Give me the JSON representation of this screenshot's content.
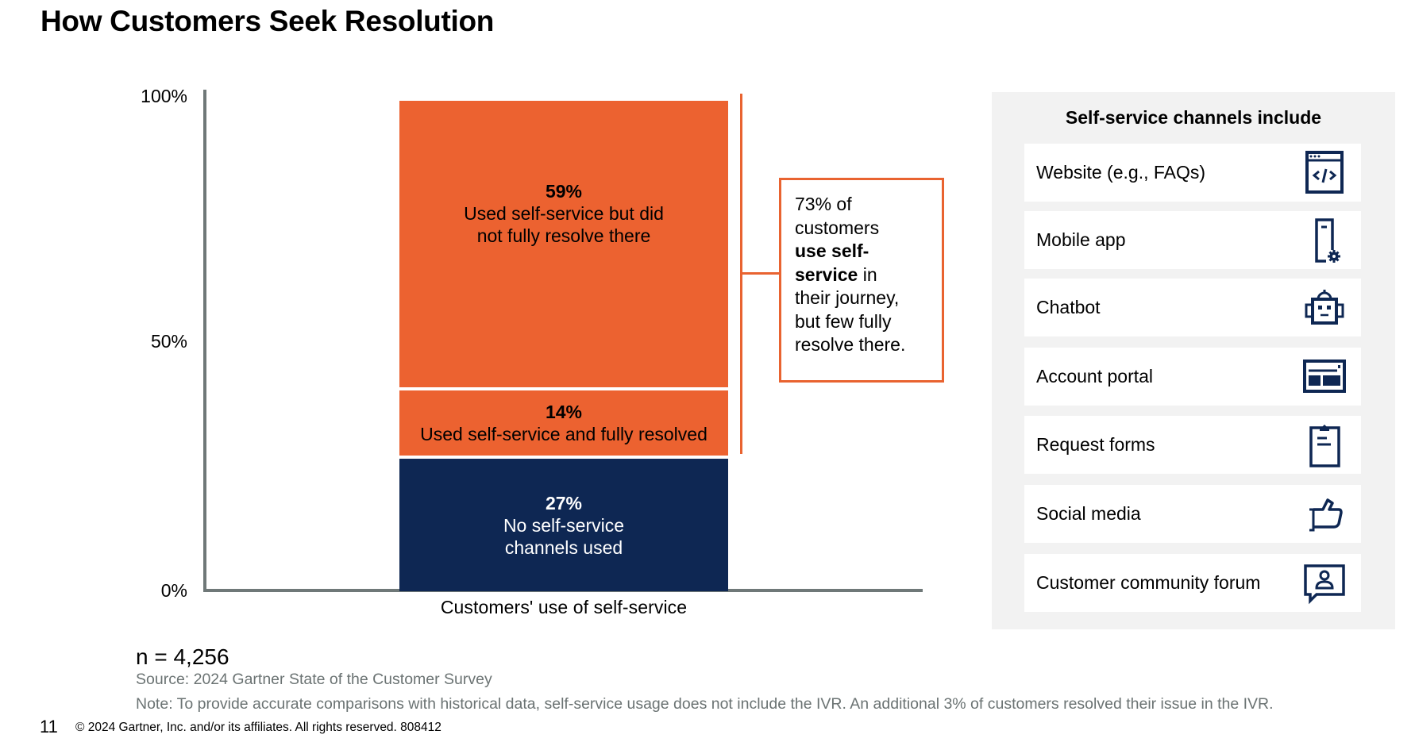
{
  "title": "How Customers Seek Resolution",
  "chart_data": {
    "type": "bar",
    "stacked": true,
    "title": "How Customers Seek Resolution",
    "xlabel": "Customers' use of self-service",
    "ylabel": "",
    "ylim": [
      0,
      100
    ],
    "yticks": [
      "0%",
      "50%",
      "100%"
    ],
    "ytick_values": [
      0,
      50,
      100
    ],
    "categories": [
      "Customers' use of self-service"
    ],
    "series": [
      {
        "name": "No self-service channels used",
        "pct_label": "27%",
        "values": [
          27
        ],
        "color": "#0e2753",
        "text_color": "#ffffff",
        "label_lines": [
          "No self-service",
          "channels used"
        ]
      },
      {
        "name": "Used self-service and fully resolved",
        "pct_label": "14%",
        "values": [
          14
        ],
        "color": "#ec6230",
        "text_color": "#000000",
        "label_lines": [
          "Used self-service and fully resolved"
        ]
      },
      {
        "name": "Used self-service but did not fully resolve there",
        "pct_label": "59%",
        "values": [
          59
        ],
        "color": "#ec6230",
        "text_color": "#000000",
        "label_lines": [
          "Used self-service but did",
          "not fully resolve there"
        ]
      }
    ],
    "grid": false,
    "legend": "none",
    "annotation": {
      "brackets_series": [
        "Used self-service and fully resolved",
        "Used self-service but did not fully resolve there"
      ],
      "text_parts": [
        {
          "text": "73% of customers ",
          "bold": false
        },
        {
          "text": "use self-service",
          "bold": true
        },
        {
          "text": " in their journey, but few fully resolve there.",
          "bold": false
        }
      ],
      "lines": [
        [
          {
            "t": "73% of",
            "b": false
          }
        ],
        [
          {
            "t": "customers",
            "b": false
          }
        ],
        [
          {
            "t": "use self-",
            "b": true
          }
        ],
        [
          {
            "t": "service",
            "b": true
          },
          {
            "t": " in",
            "b": false
          }
        ],
        [
          {
            "t": "their journey,",
            "b": false
          }
        ],
        [
          {
            "t": "but few fully",
            "b": false
          }
        ],
        [
          {
            "t": "resolve there.",
            "b": false
          }
        ]
      ],
      "color": "#e96330"
    }
  },
  "panel": {
    "title": "Self-service channels include",
    "items": [
      {
        "label": "Website (e.g., FAQs)",
        "icon": "website-code-icon"
      },
      {
        "label": "Mobile app",
        "icon": "mobile-app-gear-icon"
      },
      {
        "label": "Chatbot",
        "icon": "robot-icon"
      },
      {
        "label": "Account portal",
        "icon": "portal-layout-icon"
      },
      {
        "label": "Request forms",
        "icon": "clipboard-icon"
      },
      {
        "label": "Social media",
        "icon": "thumbs-up-icon"
      },
      {
        "label": "Customer community forum",
        "icon": "forum-user-chat-icon"
      }
    ],
    "icon_color": "#0e2753"
  },
  "footer": {
    "n": "n = 4,256",
    "source": "Source: 2024 Gartner State of the Customer Survey",
    "note": "Note: To provide accurate comparisons with historical data, self-service usage does not include the IVR. An additional 3% of customers resolved their issue in the IVR.",
    "page_number": "11",
    "copyright": "© 2024 Gartner, Inc. and/or its affiliates. All rights reserved. 808412"
  }
}
